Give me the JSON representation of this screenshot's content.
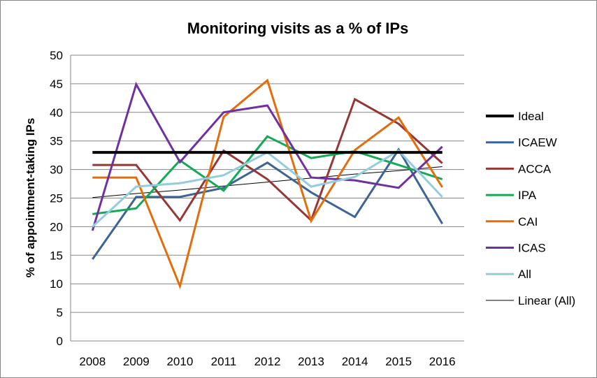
{
  "chart_data": {
    "type": "line",
    "title": "Monitoring visits as a % of IPs",
    "xlabel": "",
    "ylabel": "% of appointment-taking IPs",
    "ylim": [
      0,
      50
    ],
    "yticks": [
      "0",
      "5",
      "10",
      "15",
      "20",
      "25",
      "30",
      "35",
      "40",
      "45",
      "50"
    ],
    "categories": [
      "2008",
      "2009",
      "2010",
      "2011",
      "2012",
      "2013",
      "2014",
      "2015",
      "2016"
    ],
    "grid": true,
    "legend_position": "right",
    "series": [
      {
        "name": "Ideal",
        "color": "#000000",
        "width": 4,
        "values": [
          33,
          33,
          33,
          33,
          33,
          33,
          33,
          33,
          33
        ]
      },
      {
        "name": "ICAEW",
        "color": "#3C6494",
        "width": 3,
        "values": [
          14.3,
          25.2,
          25.2,
          26.8,
          31.2,
          26.0,
          21.7,
          33.5,
          20.5
        ]
      },
      {
        "name": "ACCA",
        "color": "#953735",
        "width": 3,
        "values": [
          30.8,
          30.8,
          21.1,
          33.3,
          28.3,
          21.1,
          42.3,
          38.0,
          31.1
        ]
      },
      {
        "name": "IPA",
        "color": "#12AA55",
        "width": 3,
        "values": [
          22.2,
          23.2,
          31.6,
          26.3,
          35.8,
          32.0,
          33.2,
          30.8,
          28.3
        ]
      },
      {
        "name": "CAI",
        "color": "#E46C0A",
        "width": 3,
        "values": [
          28.6,
          28.6,
          9.6,
          39.2,
          45.6,
          21.0,
          33.4,
          39.1,
          26.9
        ]
      },
      {
        "name": "ICAS",
        "color": "#7030A0",
        "width": 3,
        "values": [
          19.3,
          44.9,
          31.3,
          40.0,
          41.2,
          28.6,
          28.1,
          26.8,
          34.0
        ]
      },
      {
        "name": "All",
        "color": "#93CDDD",
        "width": 3,
        "values": [
          20.0,
          27.0,
          27.6,
          29.0,
          33.0,
          27.0,
          28.7,
          33.3,
          25.2
        ]
      },
      {
        "name": "Linear (All)",
        "color": "#000000",
        "width": 1,
        "values": [
          25.1,
          25.8,
          26.4,
          27.1,
          27.8,
          28.5,
          29.2,
          29.8,
          30.5
        ]
      }
    ]
  }
}
